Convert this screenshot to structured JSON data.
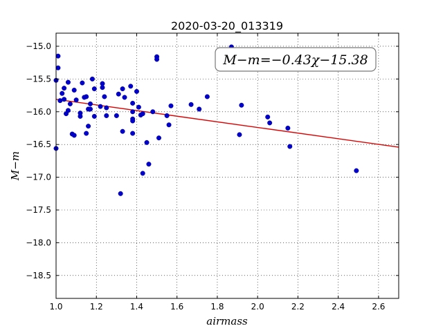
{
  "chart_data": {
    "type": "scatter",
    "title": "2020-03-20_013319",
    "xlabel": "airmass",
    "ylabel": "M−m",
    "xlim": [
      1.0,
      2.7
    ],
    "ylim": [
      -18.85,
      -14.8
    ],
    "y_inverted": true,
    "xticks": [
      "1.0",
      "1.2",
      "1.4",
      "1.6",
      "1.8",
      "2.0",
      "2.2",
      "2.4",
      "2.6"
    ],
    "xtick_values": [
      1.0,
      1.2,
      1.4,
      1.6,
      1.8,
      2.0,
      2.2,
      2.4,
      2.6
    ],
    "yticks": [
      "−15.0",
      "−15.5",
      "−16.0",
      "−16.5",
      "−17.0",
      "−17.5",
      "−18.0",
      "−18.5"
    ],
    "ytick_values": [
      -15.0,
      -15.5,
      -16.0,
      -16.5,
      -17.0,
      -17.5,
      -18.0,
      -18.5
    ],
    "grid": true,
    "annotation": "M−m=−0.43χ−15.38",
    "annotation_position": "top-right",
    "point_color": "#0000cc",
    "line_color": "#dd0000",
    "fit": {
      "slope": -0.43,
      "intercept": -15.38
    },
    "points": [
      [
        1.0,
        -15.52
      ],
      [
        1.0,
        -16.56
      ],
      [
        1.01,
        -15.15
      ],
      [
        1.01,
        -15.33
      ],
      [
        1.02,
        -15.83
      ],
      [
        1.03,
        -15.72
      ],
      [
        1.04,
        -15.81
      ],
      [
        1.04,
        -15.64
      ],
      [
        1.05,
        -16.03
      ],
      [
        1.06,
        -15.55
      ],
      [
        1.06,
        -15.98
      ],
      [
        1.07,
        -15.88
      ],
      [
        1.08,
        -16.34
      ],
      [
        1.09,
        -16.36
      ],
      [
        1.09,
        -15.67
      ],
      [
        1.1,
        -15.82
      ],
      [
        1.12,
        -16.02
      ],
      [
        1.12,
        -16.07
      ],
      [
        1.13,
        -15.56
      ],
      [
        1.14,
        -15.78
      ],
      [
        1.15,
        -16.33
      ],
      [
        1.15,
        -15.77
      ],
      [
        1.16,
        -15.96
      ],
      [
        1.16,
        -16.22
      ],
      [
        1.17,
        -15.88
      ],
      [
        1.17,
        -15.96
      ],
      [
        1.18,
        -15.5
      ],
      [
        1.19,
        -16.07
      ],
      [
        1.19,
        -15.65
      ],
      [
        1.22,
        -15.92
      ],
      [
        1.23,
        -15.63
      ],
      [
        1.23,
        -15.57
      ],
      [
        1.24,
        -15.77
      ],
      [
        1.25,
        -15.94
      ],
      [
        1.25,
        -16.06
      ],
      [
        1.3,
        -16.06
      ],
      [
        1.31,
        -15.73
      ],
      [
        1.32,
        -17.25
      ],
      [
        1.33,
        -15.65
      ],
      [
        1.33,
        -16.3
      ],
      [
        1.34,
        -15.78
      ],
      [
        1.37,
        -15.61
      ],
      [
        1.38,
        -15.87
      ],
      [
        1.38,
        -16.0
      ],
      [
        1.38,
        -16.11
      ],
      [
        1.38,
        -16.14
      ],
      [
        1.38,
        -16.33
      ],
      [
        1.4,
        -15.69
      ],
      [
        1.41,
        -15.93
      ],
      [
        1.42,
        -16.05
      ],
      [
        1.43,
        -16.03
      ],
      [
        1.43,
        -16.94
      ],
      [
        1.45,
        -16.47
      ],
      [
        1.46,
        -16.8
      ],
      [
        1.48,
        -16.0
      ],
      [
        1.5,
        -15.16
      ],
      [
        1.5,
        -15.2
      ],
      [
        1.51,
        -16.4
      ],
      [
        1.55,
        -16.06
      ],
      [
        1.56,
        -16.2
      ],
      [
        1.57,
        -15.91
      ],
      [
        1.67,
        -15.89
      ],
      [
        1.71,
        -15.96
      ],
      [
        1.75,
        -15.77
      ],
      [
        1.87,
        -15.01
      ],
      [
        1.91,
        -16.35
      ],
      [
        1.92,
        -15.9
      ],
      [
        2.05,
        -16.08
      ],
      [
        2.06,
        -16.17
      ],
      [
        2.15,
        -16.25
      ],
      [
        2.16,
        -16.53
      ],
      [
        2.49,
        -16.9
      ]
    ]
  }
}
